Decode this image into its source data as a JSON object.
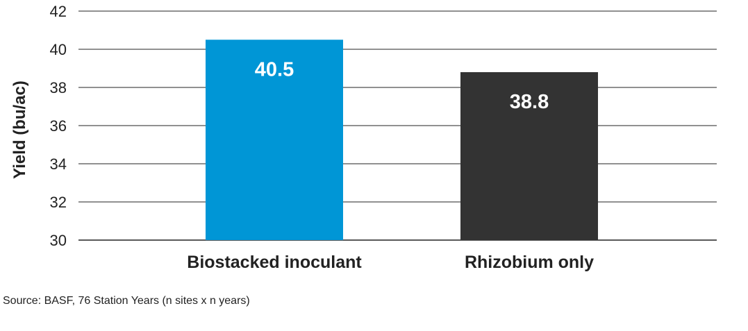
{
  "chart_data": {
    "type": "bar",
    "categories": [
      "Biostacked inoculant",
      "Rhizobium only"
    ],
    "values": [
      40.5,
      38.8
    ],
    "value_labels": [
      "40.5",
      "38.8"
    ],
    "colors": [
      "#0096d6",
      "#333333"
    ],
    "ylabel": "Yield (bu/ac)",
    "xlabel": "",
    "ylim": [
      30,
      42
    ],
    "yticks": [
      "30",
      "32",
      "34",
      "36",
      "38",
      "40",
      "42"
    ],
    "grid": true
  },
  "source_note": "Source: BASF, 76 Station Years (n sites x n years)"
}
